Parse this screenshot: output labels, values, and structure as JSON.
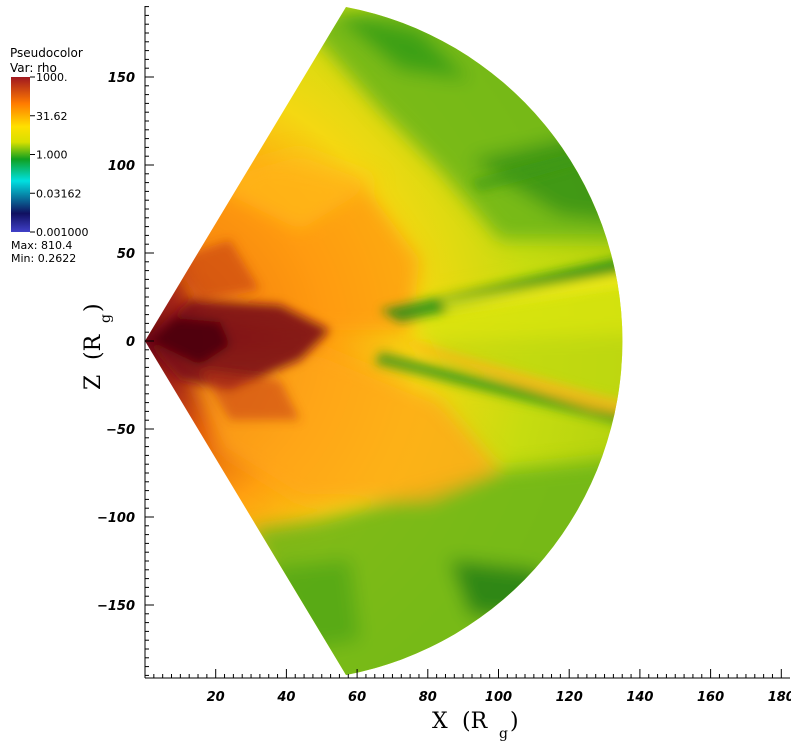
{
  "legend": {
    "title": "Pseudocolor",
    "var_label": "Var: rho",
    "ticks": [
      "1000.",
      "31.62",
      "1.000",
      "0.03162",
      "0.001000"
    ],
    "max_label": "Max:  810.4",
    "min_label": "Min:  0.2622",
    "colors": [
      "#b02830",
      "#ff6a00",
      "#ffe800",
      "#2fc000",
      "#00e6e6",
      "#1a1a8c"
    ]
  },
  "chart_data": {
    "type": "heatmap",
    "variable": "rho",
    "data_max": 810.4,
    "data_min": 0.2622,
    "colorbar_range": [
      0.001,
      1000
    ],
    "colorbar_scale": "log",
    "x": {
      "label": "X",
      "unit_main": "(R",
      "unit_sub": "g",
      "unit_close": ")",
      "range": [
        0,
        191
      ],
      "ticks": [
        20,
        40,
        60,
        80,
        100,
        120,
        140,
        160,
        180
      ]
    },
    "y": {
      "label": "Z",
      "unit_main": "(R",
      "unit_sub": "g",
      "unit_close": ")",
      "range": [
        -191,
        191
      ],
      "ticks": [
        150,
        100,
        50,
        0,
        -50,
        -100,
        -150
      ],
      "tick_labels": [
        "150",
        "100",
        "50",
        "0",
        "−50",
        "−100",
        "−150"
      ]
    },
    "domain": {
      "shape": "spherical wedge",
      "outer_radius": 191,
      "polar_edge_x": 62,
      "polar_edge_z": 188
    },
    "grid": false
  }
}
